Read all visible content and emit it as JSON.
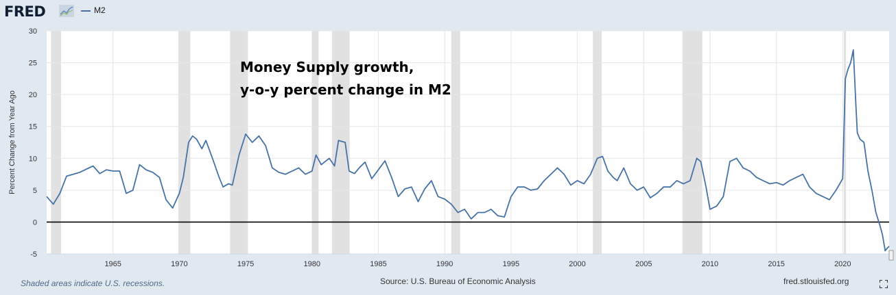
{
  "header": {
    "logo_text": "FRED",
    "series_label": "M2",
    "series_color": "#4572a7"
  },
  "annotation": {
    "line1": "Money Supply growth,",
    "line2": "y-o-y percent change in M2"
  },
  "footer": {
    "recessions_note": "Shaded areas indicate U.S. recessions.",
    "source": "Source: U.S. Bureau of Economic Analysis",
    "site": "fred.stlouisfed.org"
  },
  "chart_data": {
    "type": "line",
    "ylabel": "Percent Change from Year Ago",
    "xlim": [
      1960.0,
      2023.5
    ],
    "ylim": [
      -5,
      30
    ],
    "yticks": [
      -5,
      0,
      5,
      10,
      15,
      20,
      25,
      30
    ],
    "xticks": [
      1965,
      1970,
      1975,
      1980,
      1985,
      1990,
      1995,
      2000,
      2005,
      2010,
      2015,
      2020
    ],
    "grid": true,
    "zero_line": true,
    "recessions": [
      [
        1960.33,
        1961.08
      ],
      [
        1969.92,
        1970.83
      ],
      [
        1973.83,
        1975.17
      ],
      [
        1980.0,
        1980.5
      ],
      [
        1981.5,
        1982.83
      ],
      [
        1990.5,
        1991.17
      ],
      [
        2001.17,
        2001.83
      ],
      [
        2007.92,
        2009.42
      ],
      [
        2020.08,
        2020.25
      ]
    ],
    "series": [
      {
        "name": "M2",
        "color": "#4572a7",
        "x": [
          1960.0,
          1960.5,
          1961.0,
          1961.5,
          1962.0,
          1962.5,
          1963.0,
          1963.5,
          1964.0,
          1964.5,
          1965.0,
          1965.5,
          1966.0,
          1966.5,
          1967.0,
          1967.5,
          1968.0,
          1968.5,
          1969.0,
          1969.5,
          1970.0,
          1970.3,
          1970.7,
          1971.0,
          1971.3,
          1971.7,
          1972.0,
          1972.5,
          1973.0,
          1973.3,
          1973.7,
          1974.0,
          1974.5,
          1975.0,
          1975.5,
          1976.0,
          1976.5,
          1977.0,
          1977.5,
          1978.0,
          1978.5,
          1979.0,
          1979.5,
          1980.0,
          1980.3,
          1980.7,
          1981.0,
          1981.3,
          1981.7,
          1982.0,
          1982.5,
          1982.8,
          1983.2,
          1983.6,
          1984.0,
          1984.5,
          1985.0,
          1985.5,
          1986.0,
          1986.5,
          1987.0,
          1987.5,
          1988.0,
          1988.5,
          1989.0,
          1989.5,
          1990.0,
          1990.5,
          1991.0,
          1991.5,
          1992.0,
          1992.5,
          1993.0,
          1993.5,
          1994.0,
          1994.5,
          1995.0,
          1995.5,
          1996.0,
          1996.5,
          1997.0,
          1997.5,
          1998.0,
          1998.5,
          1999.0,
          1999.5,
          2000.0,
          2000.5,
          2001.0,
          2001.5,
          2001.9,
          2002.3,
          2002.7,
          2003.0,
          2003.5,
          2004.0,
          2004.5,
          2005.0,
          2005.5,
          2006.0,
          2006.5,
          2007.0,
          2007.5,
          2008.0,
          2008.5,
          2009.0,
          2009.3,
          2009.7,
          2010.0,
          2010.5,
          2011.0,
          2011.5,
          2012.0,
          2012.5,
          2013.0,
          2013.5,
          2014.0,
          2014.5,
          2015.0,
          2015.5,
          2016.0,
          2016.5,
          2017.0,
          2017.5,
          2018.0,
          2018.5,
          2019.0,
          2019.5,
          2020.0,
          2020.2,
          2020.4,
          2020.6,
          2020.8,
          2021.0,
          2021.1,
          2021.3,
          2021.6,
          2021.9,
          2022.2,
          2022.5,
          2022.8,
          2023.0,
          2023.2,
          2023.4,
          2023.5
        ],
        "y": [
          4.0,
          2.8,
          4.5,
          7.2,
          7.5,
          7.8,
          8.3,
          8.8,
          7.6,
          8.2,
          8.0,
          8.0,
          4.5,
          5.0,
          9.0,
          8.2,
          7.8,
          7.0,
          3.5,
          2.2,
          4.5,
          7.0,
          12.5,
          13.5,
          13.0,
          11.5,
          12.8,
          10.0,
          7.0,
          5.5,
          6.0,
          5.8,
          10.5,
          13.8,
          12.5,
          13.5,
          12.0,
          8.5,
          7.8,
          7.5,
          8.0,
          8.5,
          7.5,
          8.0,
          10.5,
          9.0,
          9.5,
          10.0,
          8.8,
          12.8,
          12.5,
          8.0,
          7.6,
          8.6,
          9.4,
          6.8,
          8.2,
          9.6,
          7.0,
          4.0,
          5.2,
          5.5,
          3.2,
          5.2,
          6.5,
          4.0,
          3.6,
          2.8,
          1.5,
          2.0,
          0.5,
          1.5,
          1.5,
          2.0,
          1.0,
          0.8,
          4.0,
          5.5,
          5.5,
          5.0,
          5.2,
          6.5,
          7.5,
          8.5,
          7.5,
          5.8,
          6.5,
          6.0,
          7.5,
          10.0,
          10.3,
          8.0,
          7.0,
          6.5,
          8.5,
          6.0,
          5.0,
          5.5,
          3.8,
          4.5,
          5.5,
          5.5,
          6.5,
          6.0,
          6.5,
          10.0,
          9.5,
          5.5,
          2.0,
          2.5,
          4.0,
          9.5,
          10.0,
          8.5,
          8.0,
          7.0,
          6.5,
          6.0,
          6.2,
          5.8,
          6.5,
          7.0,
          7.5,
          5.5,
          4.5,
          4.0,
          3.5,
          5.0,
          6.8,
          22.5,
          24.0,
          25.0,
          27.0,
          18.0,
          14.0,
          13.0,
          12.5,
          8.0,
          5.0,
          1.5,
          -0.5,
          -2.0,
          -4.5,
          -4.0,
          -3.8
        ]
      }
    ]
  }
}
